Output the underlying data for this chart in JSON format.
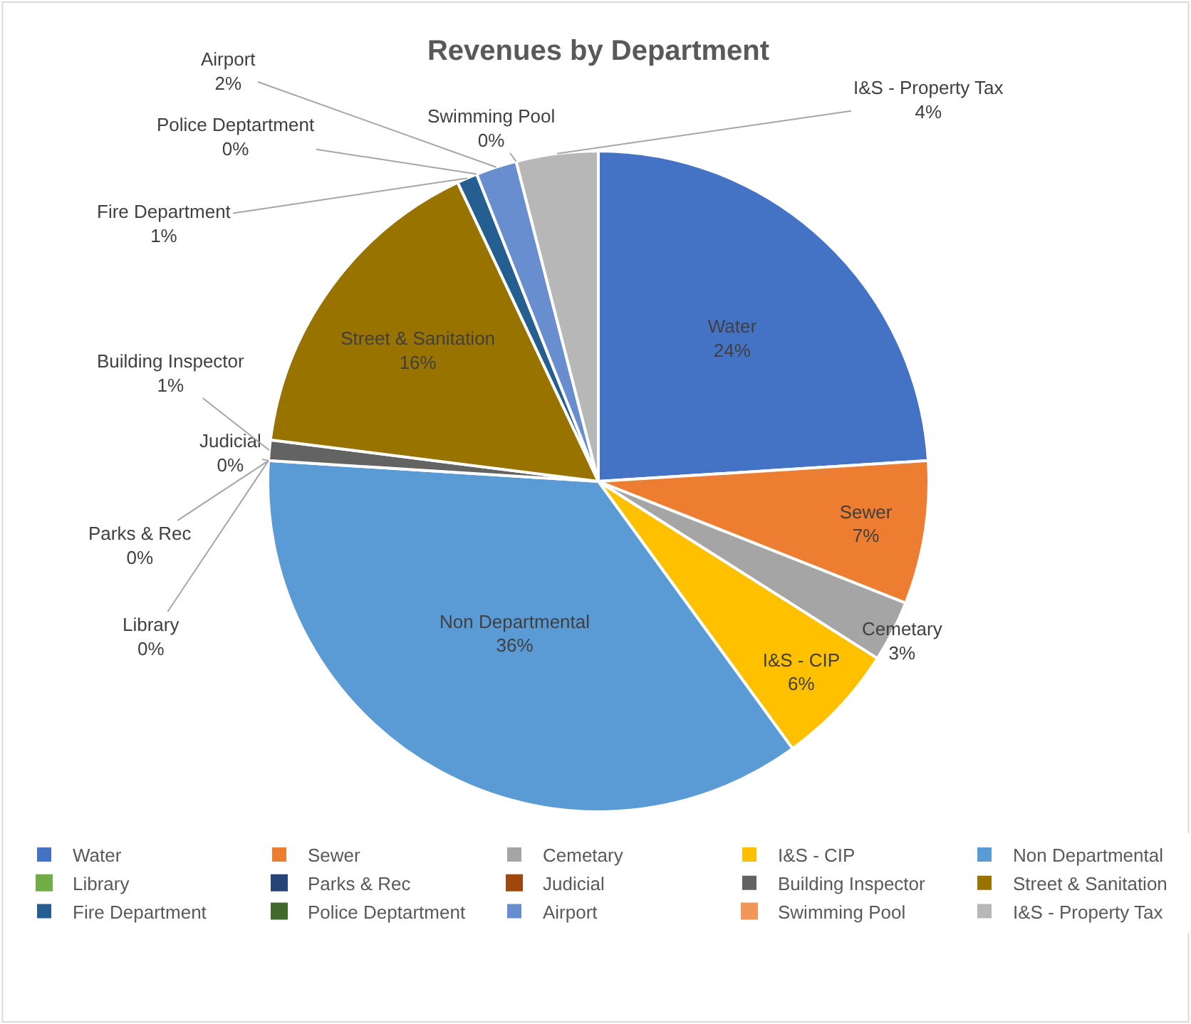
{
  "chart_data": {
    "type": "pie",
    "title": "Revenues by Department",
    "categories": [
      "Water",
      "Sewer",
      "Cemetary",
      "I&S - CIP",
      "Non Departmental",
      "Library",
      "Parks & Rec",
      "Judicial",
      "Building Inspector",
      "Street & Sanitation",
      "Fire Department",
      "Police Deptartment",
      "Airport",
      "Swimming Pool",
      "I&S - Property Tax"
    ],
    "values": [
      24,
      7,
      3,
      6,
      36,
      0,
      0,
      0,
      1,
      16,
      1,
      0,
      2,
      0,
      4
    ],
    "value_labels": [
      "24%",
      "7%",
      "3%",
      "6%",
      "36%",
      "0%",
      "0%",
      "0%",
      "1%",
      "16%",
      "1%",
      "0%",
      "2%",
      "0%",
      "4%"
    ],
    "colors": [
      "#4472c4",
      "#ed7d31",
      "#a5a5a5",
      "#ffc000",
      "#5b9bd5",
      "#70ad47",
      "#264478",
      "#9e480e",
      "#636363",
      "#997300",
      "#255e91",
      "#43682b",
      "#698ed0",
      "#f1975a",
      "#b7b7b7"
    ],
    "legend": "bottom"
  }
}
